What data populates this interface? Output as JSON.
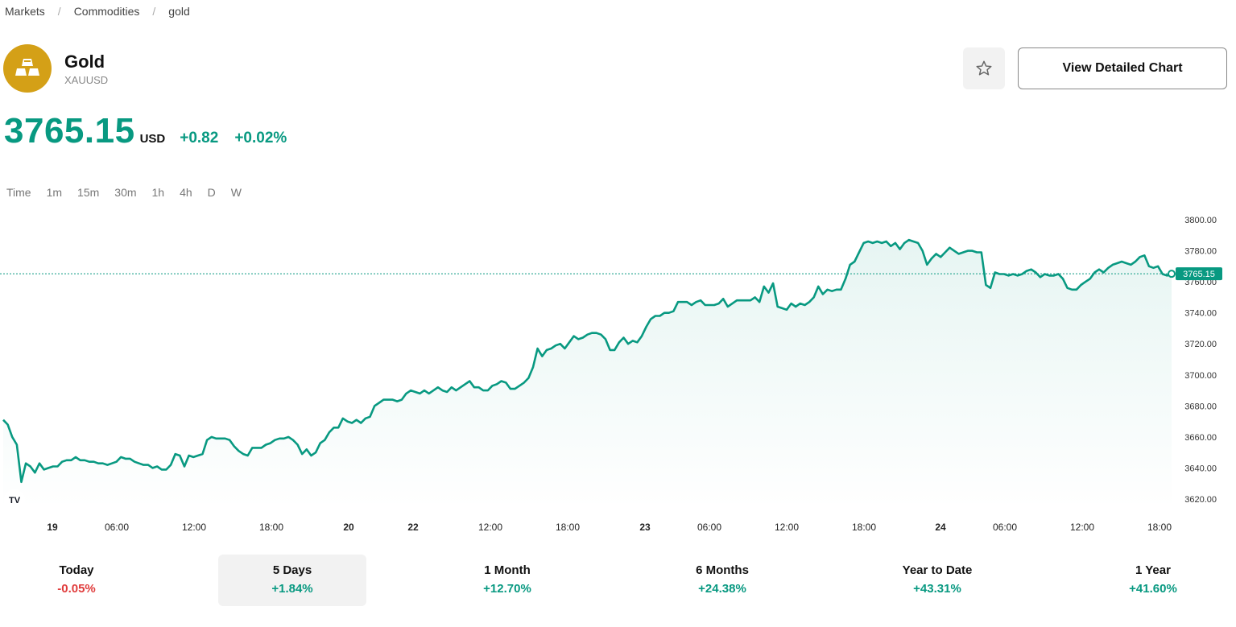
{
  "breadcrumb": {
    "items": [
      "Markets",
      "Commodities",
      "gold"
    ],
    "separator": "/"
  },
  "asset": {
    "name": "Gold",
    "ticker": "XAUUSD",
    "logo_icon": "gold-bars-icon",
    "logo_color": "#d4a017"
  },
  "actions": {
    "favorite_icon": "star-icon",
    "detail_label": "View Detailed Chart"
  },
  "quote": {
    "price": "3765.15",
    "currency": "USD",
    "change": "+0.82",
    "change_pct": "+0.02%",
    "up_color": "#089981",
    "down_color": "#e03c3c"
  },
  "intervals": [
    "Time",
    "1m",
    "15m",
    "30m",
    "1h",
    "4h",
    "D",
    "W"
  ],
  "chart_data": {
    "type": "area",
    "title": "",
    "xlabel": "",
    "ylabel": "",
    "ylim": [
      3610,
      3805
    ],
    "yticks": [
      "3800.00",
      "3780.00",
      "3760.00",
      "3740.00",
      "3720.00",
      "3700.00",
      "3680.00",
      "3660.00",
      "3640.00",
      "3620.00"
    ],
    "ytick_values": [
      3800,
      3780,
      3760,
      3740,
      3720,
      3700,
      3680,
      3660,
      3640,
      3620
    ],
    "xticks": [
      "19",
      "06:00",
      "12:00",
      "18:00",
      "20",
      "22",
      "12:00",
      "18:00",
      "23",
      "06:00",
      "12:00",
      "18:00",
      "24",
      "06:00",
      "12:00",
      "18:00"
    ],
    "xtick_bold": [
      true,
      false,
      false,
      false,
      true,
      true,
      false,
      false,
      true,
      false,
      false,
      false,
      true,
      false,
      false,
      false
    ],
    "last_price": 3765.15,
    "last_price_label": "3765.15",
    "series_color": "#089981",
    "watermark": "TV",
    "series": [
      {
        "name": "XAUUSD",
        "values": [
          3671,
          3668,
          3660,
          3655,
          3631,
          3643,
          3641,
          3637,
          3643,
          3639,
          3640,
          3641,
          3641,
          3644,
          3645,
          3645,
          3647,
          3645,
          3645,
          3644,
          3644,
          3643,
          3643,
          3642,
          3643,
          3644,
          3647,
          3646,
          3646,
          3644,
          3643,
          3642,
          3642,
          3640,
          3641,
          3639,
          3639,
          3642,
          3649,
          3648,
          3641,
          3648,
          3647,
          3648,
          3649,
          3658,
          3660,
          3659,
          3659,
          3659,
          3658,
          3654,
          3651,
          3649,
          3648,
          3653,
          3653,
          3653,
          3655,
          3656,
          3658,
          3659,
          3659,
          3660,
          3658,
          3655,
          3649,
          3652,
          3648,
          3650,
          3656,
          3658,
          3663,
          3666,
          3666,
          3672,
          3670,
          3669,
          3671,
          3669,
          3672,
          3673,
          3680,
          3682,
          3684,
          3684,
          3684,
          3683,
          3684,
          3688,
          3690,
          3689,
          3688,
          3690,
          3688,
          3690,
          3692,
          3690,
          3689,
          3692,
          3690,
          3692,
          3694,
          3696,
          3692,
          3692,
          3690,
          3690,
          3693,
          3694,
          3696,
          3695,
          3691,
          3691,
          3693,
          3695,
          3698,
          3705,
          3717,
          3712,
          3716,
          3717,
          3719,
          3720,
          3717,
          3721,
          3725,
          3723,
          3724,
          3726,
          3727,
          3727,
          3726,
          3723,
          3716,
          3716,
          3721,
          3724,
          3720,
          3722,
          3721,
          3725,
          3731,
          3736,
          3738,
          3738,
          3740,
          3740,
          3741,
          3747,
          3747,
          3747,
          3745,
          3747,
          3748,
          3745,
          3745,
          3745,
          3746,
          3749,
          3744,
          3746,
          3748,
          3748,
          3748,
          3748,
          3750,
          3747,
          3757,
          3753,
          3759,
          3744,
          3743,
          3742,
          3746,
          3744,
          3746,
          3745,
          3747,
          3750,
          3757,
          3752,
          3755,
          3754,
          3755,
          3755,
          3762,
          3771,
          3773,
          3779,
          3785,
          3786,
          3785,
          3786,
          3785,
          3786,
          3783,
          3785,
          3781,
          3785,
          3787,
          3786,
          3785,
          3780,
          3771,
          3775,
          3778,
          3776,
          3779,
          3782,
          3780,
          3778,
          3779,
          3780,
          3780,
          3779,
          3779,
          3758,
          3756,
          3766,
          3765,
          3765,
          3764,
          3765,
          3764,
          3765,
          3767,
          3768,
          3766,
          3763,
          3765,
          3764,
          3764,
          3765,
          3762,
          3756,
          3755,
          3755,
          3758,
          3760,
          3762,
          3766,
          3768,
          3766,
          3769,
          3771,
          3772,
          3773,
          3772,
          3771,
          3773,
          3776,
          3777,
          3770,
          3769,
          3770,
          3765,
          3764,
          3765
        ]
      }
    ]
  },
  "periods": [
    {
      "label": "Today",
      "value": "-0.05%",
      "dir": "neg"
    },
    {
      "label": "5 Days",
      "value": "+1.84%",
      "dir": "pos",
      "active": true
    },
    {
      "label": "1 Month",
      "value": "+12.70%",
      "dir": "pos"
    },
    {
      "label": "6 Months",
      "value": "+24.38%",
      "dir": "pos"
    },
    {
      "label": "Year to Date",
      "value": "+43.31%",
      "dir": "pos"
    },
    {
      "label": "1 Year",
      "value": "+41.60%",
      "dir": "pos"
    }
  ]
}
